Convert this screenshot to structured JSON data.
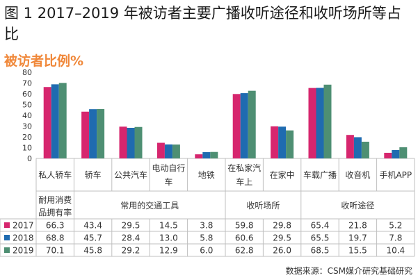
{
  "title": "图 1 2017–2019 年被访者主要广播收听途径和收听场所等占比",
  "source": "数据来源：CSM媒介研究基础研究",
  "chart_data": {
    "type": "bar",
    "title": "图 1 2017–2019 年被访者主要广播收听途径和收听场所等占比",
    "subtitle": "被访者比例%",
    "ylim": [
      0,
      80
    ],
    "yticks": [
      0,
      10,
      20,
      30,
      40,
      50,
      60,
      70,
      80
    ],
    "grid": false,
    "categories": [
      "私人轿车",
      "轿车",
      "公共汽车",
      "电动自行车",
      "地铁",
      "在私家汽车上",
      "在家中",
      "车载广播",
      "收音机",
      "手机APP"
    ],
    "groups": [
      {
        "label": "耐用消费品拥有率",
        "span": [
          0,
          0
        ]
      },
      {
        "label": "常用的交通工具",
        "span": [
          1,
          4
        ]
      },
      {
        "label": "收听场所",
        "span": [
          5,
          6
        ]
      },
      {
        "label": "收听途径",
        "span": [
          7,
          9
        ]
      }
    ],
    "series": [
      {
        "name": "2017",
        "color": "#D6266E",
        "values": [
          66.3,
          43.4,
          29.5,
          14.5,
          3.8,
          59.8,
          29.8,
          65.4,
          21.8,
          5.2
        ]
      },
      {
        "name": "2018",
        "color": "#1F6BB0",
        "values": [
          68.8,
          45.7,
          28.4,
          13.0,
          5.8,
          60.6,
          29.5,
          65.5,
          19.7,
          7.8
        ]
      },
      {
        "name": "2019",
        "color": "#4E8F73",
        "values": [
          70.1,
          45.8,
          29.2,
          12.9,
          6.0,
          62.8,
          26.0,
          68.5,
          15.5,
          10.4
        ]
      }
    ],
    "value_labels": [
      [
        "66.3",
        "43.4",
        "29.5",
        "14.5",
        "3.8",
        "59.8",
        "29.8",
        "65.4",
        "21.8",
        "5.2"
      ],
      [
        "68.8",
        "45.7",
        "28.4",
        "13.0",
        "5.8",
        "60.6",
        "29.5",
        "65.5",
        "19.7",
        "7.8"
      ],
      [
        "70.1",
        "45.8",
        "29.2",
        "12.9",
        "6.0",
        "62.8",
        "26.0",
        "68.5",
        "15.5",
        "10.4"
      ]
    ]
  }
}
